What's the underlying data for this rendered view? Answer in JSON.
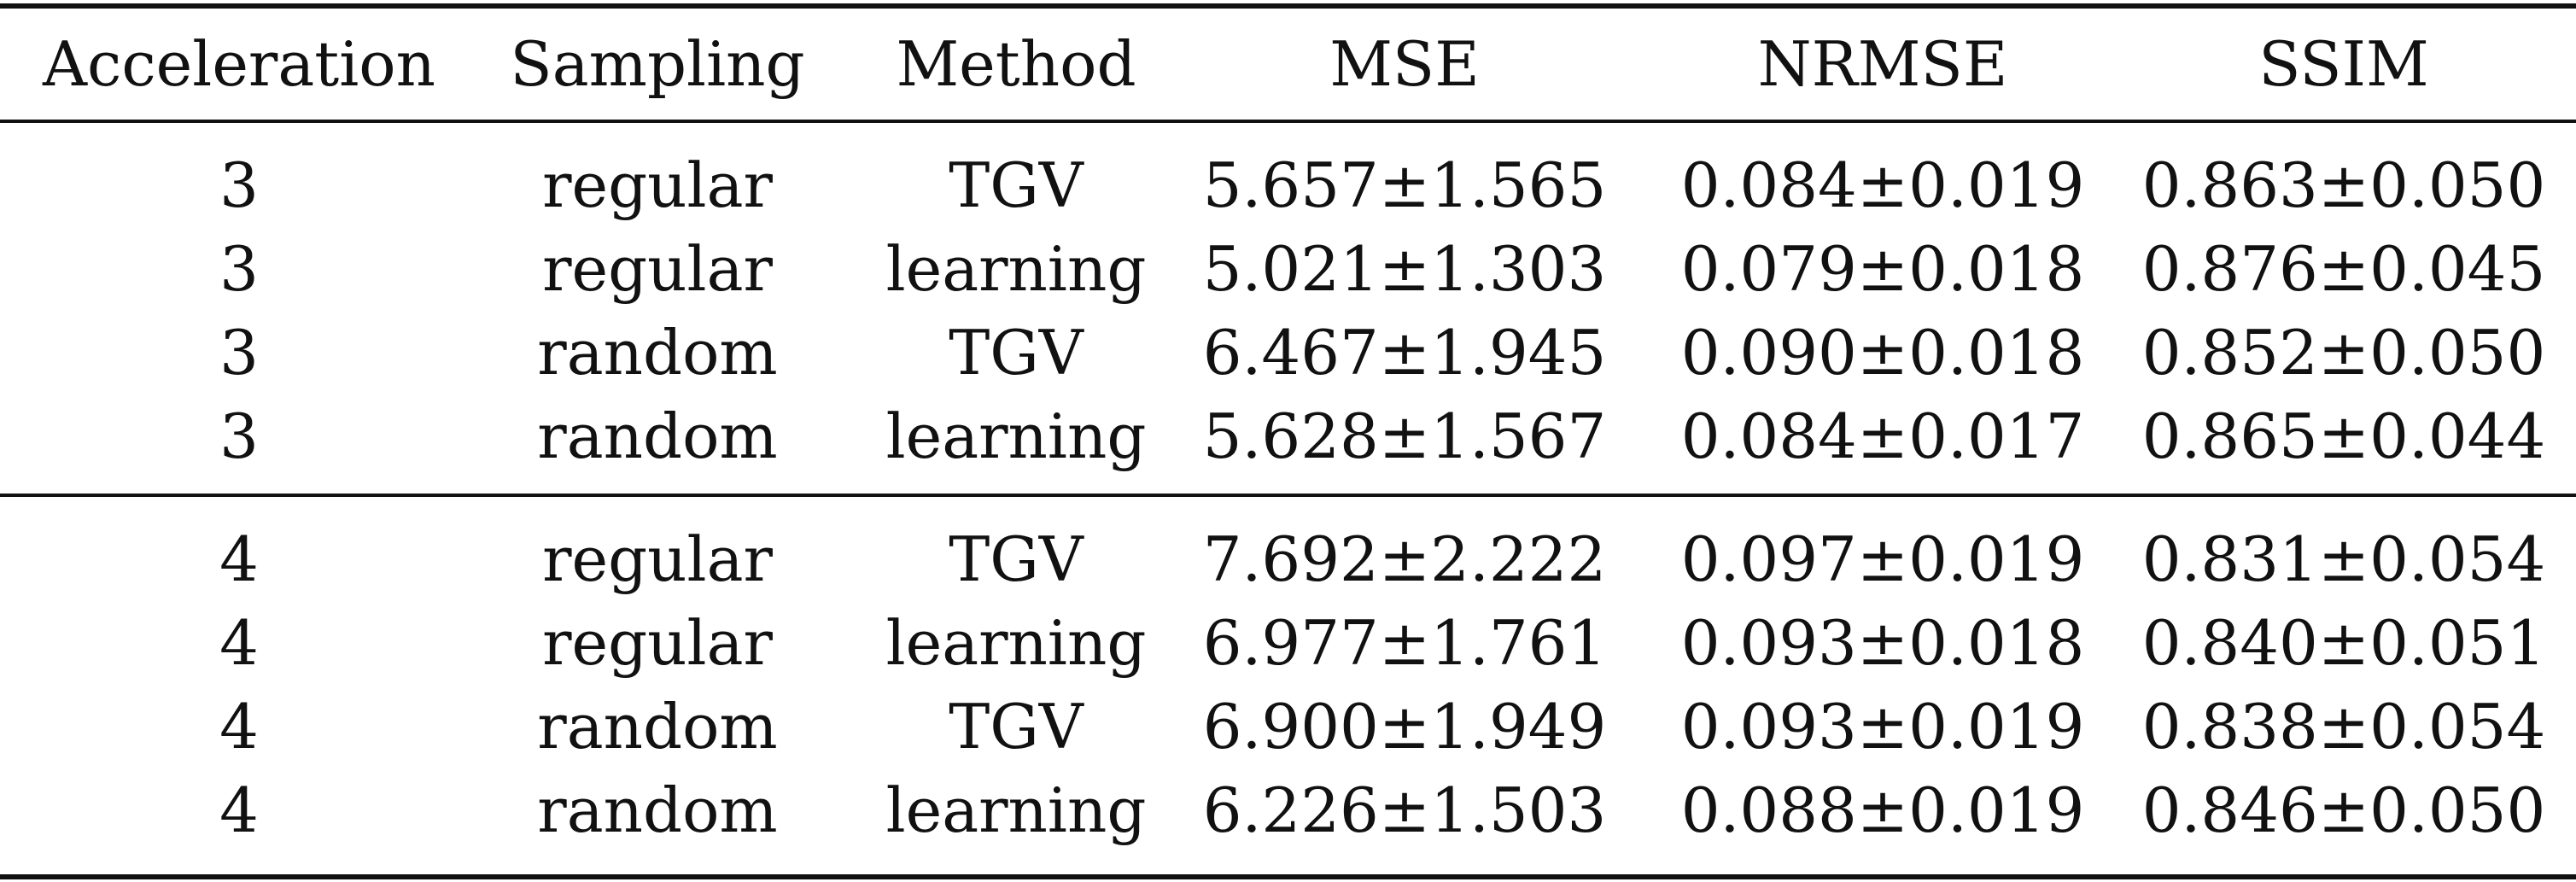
{
  "table": {
    "headers": [
      "Acceleration",
      "Sampling",
      "Method",
      "MSE",
      "NRMSE",
      "SSIM"
    ],
    "groups": [
      {
        "rows": [
          [
            "3",
            "regular",
            "TGV",
            "5.657±1.565",
            "0.084±0.019",
            "0.863±0.050"
          ],
          [
            "3",
            "regular",
            "learning",
            "5.021±1.303",
            "0.079±0.018",
            "0.876±0.045"
          ],
          [
            "3",
            "random",
            "TGV",
            "6.467±1.945",
            "0.090±0.018",
            "0.852±0.050"
          ],
          [
            "3",
            "random",
            "learning",
            "5.628±1.567",
            "0.084±0.017",
            "0.865±0.044"
          ]
        ]
      },
      {
        "rows": [
          [
            "4",
            "regular",
            "TGV",
            "7.692±2.222",
            "0.097±0.019",
            "0.831±0.054"
          ],
          [
            "4",
            "regular",
            "learning",
            "6.977±1.761",
            "0.093±0.018",
            "0.840±0.051"
          ],
          [
            "4",
            "random",
            "TGV",
            "6.900±1.949",
            "0.093±0.019",
            "0.838±0.054"
          ],
          [
            "4",
            "random",
            "learning",
            "6.226±1.503",
            "0.088±0.019",
            "0.846±0.050"
          ]
        ]
      }
    ]
  }
}
